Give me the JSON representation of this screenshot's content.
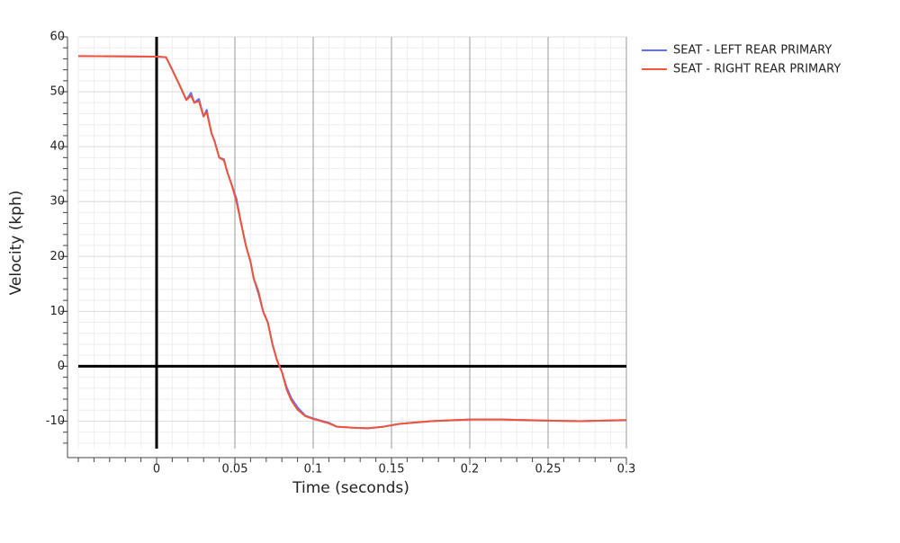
{
  "chart_data": {
    "type": "line",
    "x_label": "Time (seconds)",
    "y_label": "Velocity (kph)",
    "xlim": [
      -0.05,
      0.3
    ],
    "ylim": [
      -15,
      60
    ],
    "xticks": [
      0,
      0.05,
      0.1,
      0.15,
      0.2,
      0.25,
      0.3
    ],
    "yticks": [
      -10,
      0,
      10,
      20,
      30,
      40,
      50,
      60
    ],
    "grid": true,
    "legend": "top-right",
    "x": [
      -0.05,
      0,
      0.006,
      0.01,
      0.015,
      0.019,
      0.022,
      0.024,
      0.027,
      0.03,
      0.032,
      0.035,
      0.037,
      0.04,
      0.043,
      0.045,
      0.048,
      0.051,
      0.054,
      0.057,
      0.06,
      0.062,
      0.065,
      0.068,
      0.071,
      0.074,
      0.077,
      0.08,
      0.083,
      0.086,
      0.09,
      0.095,
      0.1,
      0.11,
      0.115,
      0.125,
      0.135,
      0.145,
      0.155,
      0.175,
      0.2,
      0.22,
      0.25,
      0.27,
      0.3
    ],
    "series": [
      {
        "name": "SEAT - LEFT REAR PRIMARY",
        "color": "#636efa",
        "values": [
          56.5,
          56.4,
          56.3,
          54,
          51,
          48.5,
          49.8,
          48,
          48.7,
          45.5,
          46.7,
          42.5,
          41,
          38,
          37.7,
          35.5,
          33,
          30.5,
          26,
          22,
          19,
          16,
          13.3,
          10,
          8,
          4,
          1,
          -1,
          -3.8,
          -5.8,
          -7.5,
          -9,
          -9.5,
          -10.3,
          -11,
          -11.2,
          -11.3,
          -11,
          -10.5,
          -10,
          -9.7,
          -9.7,
          -9.9,
          -10,
          -9.8
        ]
      },
      {
        "name": "SEAT - RIGHT REAR PRIMARY",
        "color": "#ef553b",
        "values": [
          56.5,
          56.4,
          56.3,
          54,
          51,
          48.5,
          49.3,
          48,
          48.3,
          45.5,
          46.3,
          42.5,
          41,
          38,
          37.5,
          35.5,
          33,
          30,
          26,
          22,
          19,
          16,
          13.7,
          10,
          8,
          4,
          1,
          -1,
          -4.2,
          -6.2,
          -7.9,
          -9.1,
          -9.6,
          -10.4,
          -11,
          -11.2,
          -11.3,
          -11,
          -10.5,
          -10,
          -9.7,
          -9.7,
          -9.9,
          -10,
          -9.8
        ]
      }
    ]
  }
}
